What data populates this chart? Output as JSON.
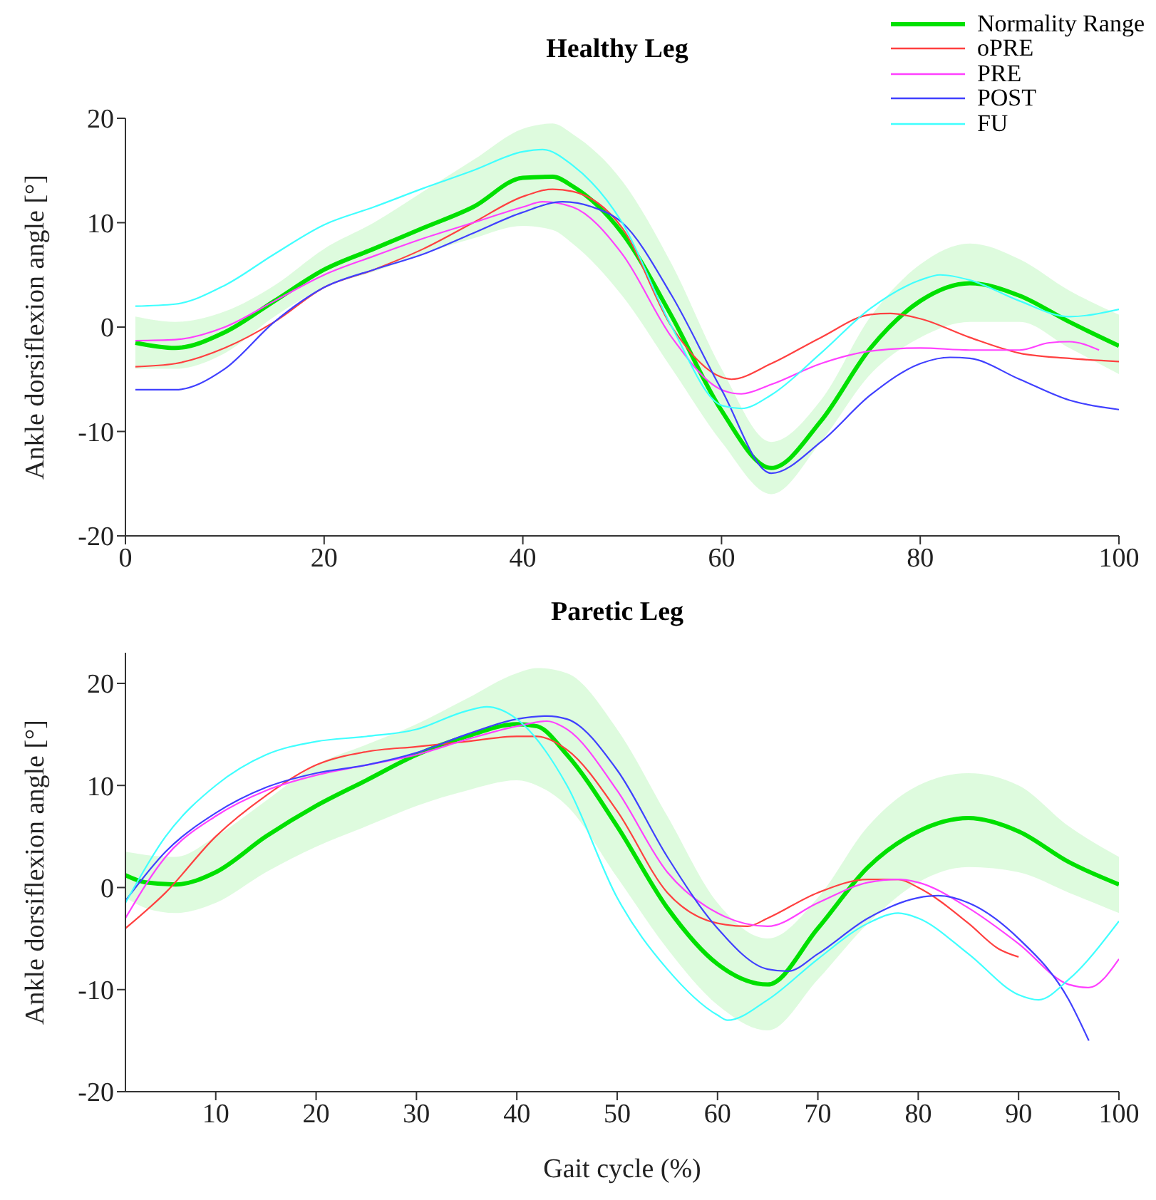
{
  "chart_data": [
    {
      "type": "line",
      "title": "Healthy Leg",
      "ylabel": "Ankle dorsiflexion angle [°]",
      "xlim": [
        0,
        100
      ],
      "xticks": [
        0,
        20,
        40,
        60,
        80,
        100
      ],
      "ylim": [
        -20,
        20
      ],
      "yticks": [
        -20,
        -10,
        0,
        10,
        20
      ],
      "legend": "top right",
      "marker": "none",
      "line_style": "solid",
      "series": [
        {
          "name": "Normality Range",
          "color": "#00e000",
          "x": [
            1,
            5,
            10,
            15,
            20,
            25,
            30,
            35,
            40,
            43,
            45,
            50,
            55,
            60,
            65,
            70,
            75,
            80,
            85,
            90,
            95,
            100
          ],
          "values": [
            -1.5,
            -2,
            -0.5,
            2.5,
            5.5,
            7.5,
            9.5,
            11.5,
            14.3,
            14.4,
            13.5,
            9,
            1,
            -8,
            -13.5,
            -9,
            -2,
            2.5,
            4.2,
            3,
            0.5,
            -1.8
          ],
          "lower": [
            -4,
            -4,
            -2.5,
            1,
            3.8,
            5.3,
            7,
            8.5,
            9.7,
            9.3,
            8,
            3,
            -4,
            -11,
            -16,
            -11,
            -4.5,
            -1,
            0.5,
            0.5,
            -2,
            -4.5
          ],
          "upper": [
            1,
            0.5,
            1.5,
            4,
            7.5,
            10,
            13,
            16,
            19,
            19.5,
            18.5,
            14,
            6,
            -4,
            -11,
            -7,
            1,
            6,
            8,
            6.5,
            3.5,
            1.2
          ]
        },
        {
          "name": "oPRE",
          "color": "#ff4040",
          "x": [
            1,
            5,
            10,
            15,
            20,
            25,
            30,
            35,
            40,
            43,
            45,
            50,
            55,
            60,
            61,
            65,
            70,
            75,
            77,
            80,
            85,
            90,
            95,
            100
          ],
          "values": [
            -3.8,
            -3.5,
            -2,
            0.5,
            3.8,
            5.5,
            7.5,
            10,
            12.5,
            13.2,
            13,
            9.5,
            0,
            -4.8,
            -5,
            -3.5,
            -1,
            1.2,
            1.3,
            0.8,
            -1,
            -2.5,
            -3,
            -3.3
          ]
        },
        {
          "name": "PRE",
          "color": "#ff40ff",
          "x": [
            1,
            5,
            10,
            15,
            20,
            25,
            30,
            35,
            40,
            42,
            45,
            50,
            55,
            60,
            62,
            65,
            70,
            75,
            80,
            85,
            90,
            93,
            95,
            98
          ],
          "values": [
            -1.3,
            -1.2,
            0,
            2.5,
            5,
            6.8,
            8.5,
            10,
            11.5,
            12,
            11.5,
            7,
            -1,
            -6,
            -6.4,
            -5.5,
            -3.5,
            -2.3,
            -2,
            -2.2,
            -2.2,
            -1.5,
            -1.4,
            -2.2
          ]
        },
        {
          "name": "POST",
          "color": "#4040ff",
          "x": [
            1,
            5,
            10,
            15,
            20,
            25,
            30,
            35,
            40,
            44,
            47,
            50,
            55,
            60,
            65,
            70,
            75,
            80,
            83,
            85,
            90,
            95,
            100
          ],
          "values": [
            -6,
            -6,
            -4,
            0.5,
            3.8,
            5.5,
            7,
            9,
            11,
            12,
            11.5,
            10,
            3,
            -6,
            -14,
            -11,
            -6.5,
            -3.5,
            -2.9,
            -3,
            -5,
            -7,
            -7.9
          ]
        },
        {
          "name": "FU",
          "color": "#40ffff",
          "x": [
            1,
            5,
            10,
            15,
            20,
            25,
            30,
            35,
            40,
            42,
            45,
            50,
            55,
            60,
            62,
            65,
            70,
            75,
            80,
            82,
            85,
            90,
            95,
            100
          ],
          "values": [
            2,
            2.2,
            4,
            7,
            9.8,
            11.5,
            13.3,
            15,
            16.8,
            17,
            15.5,
            10,
            0,
            -7.5,
            -7.8,
            -6.5,
            -2.5,
            1.8,
            4.5,
            5,
            4.5,
            2.5,
            1,
            1.7
          ]
        }
      ]
    },
    {
      "type": "line",
      "title": "Paretic Leg",
      "xlabel": "Gait cycle (%)",
      "ylabel": "Ankle dorsiflexion angle [°]",
      "xlim": [
        1,
        100
      ],
      "xticks": [
        10,
        20,
        30,
        40,
        50,
        60,
        70,
        80,
        90,
        100
      ],
      "ylim": [
        -20,
        23
      ],
      "yticks": [
        -20,
        -10,
        0,
        10,
        20
      ],
      "legend": false,
      "marker": "none",
      "line_style": "solid",
      "series": [
        {
          "color": "#00e000",
          "x": [
            1,
            3,
            6,
            10,
            15,
            20,
            25,
            30,
            35,
            40,
            42,
            45,
            50,
            55,
            60,
            65,
            70,
            75,
            80,
            85,
            90,
            95,
            100
          ],
          "values": [
            1.2,
            0.5,
            0.3,
            1.5,
            5,
            8,
            10.5,
            13,
            14.8,
            16,
            15.8,
            13,
            6,
            -2,
            -7.5,
            -9.5,
            -4,
            2,
            5.5,
            6.8,
            5.5,
            2.5,
            0.3
          ],
          "lower": [
            -1,
            -2,
            -2.5,
            -1.5,
            1.5,
            4,
            6,
            8,
            9.5,
            10.5,
            10,
            8,
            1,
            -6,
            -11.5,
            -14,
            -9,
            -3.5,
            0.5,
            2,
            1.5,
            -0.5,
            -2.5
          ],
          "upper": [
            3.5,
            3.2,
            3,
            5,
            8.5,
            12,
            14,
            16,
            18.5,
            21,
            21.5,
            21,
            15.5,
            7,
            -1.5,
            -5,
            -1,
            6,
            10,
            11.2,
            10,
            6,
            3
          ]
        },
        {
          "color": "#ff4040",
          "x": [
            1,
            5,
            10,
            15,
            20,
            25,
            30,
            35,
            40,
            42,
            45,
            50,
            55,
            60,
            63,
            65,
            70,
            75,
            78,
            80,
            85,
            88,
            90
          ],
          "values": [
            -4,
            -0.5,
            5,
            9,
            12,
            13.3,
            13.8,
            14.3,
            14.8,
            14.8,
            13.5,
            7.5,
            -0.5,
            -3.5,
            -3.8,
            -3,
            -0.5,
            0.8,
            0.8,
            0,
            -3.5,
            -6,
            -6.8
          ]
        },
        {
          "color": "#ff40ff",
          "x": [
            1,
            5,
            10,
            15,
            20,
            25,
            30,
            35,
            40,
            43,
            45,
            50,
            55,
            60,
            65,
            70,
            75,
            78,
            80,
            85,
            90,
            95,
            97,
            100
          ],
          "values": [
            -3,
            3,
            7,
            9.5,
            11,
            12,
            13,
            14.5,
            15.8,
            16.3,
            15.5,
            9.5,
            1.5,
            -2.5,
            -3.8,
            -1.5,
            0.5,
            0.8,
            0.5,
            -2,
            -5.5,
            -9.5,
            -9.8,
            -7
          ]
        },
        {
          "color": "#4040ff",
          "x": [
            1,
            5,
            10,
            15,
            20,
            25,
            30,
            35,
            40,
            43,
            45,
            50,
            55,
            60,
            65,
            67,
            70,
            75,
            80,
            82,
            85,
            90,
            95,
            97
          ],
          "values": [
            -1.3,
            3.5,
            7.3,
            9.8,
            11.2,
            12,
            13.2,
            15,
            16.5,
            16.8,
            16.5,
            11.5,
            3,
            -4,
            -8,
            -8.2,
            -6.5,
            -3,
            -1,
            -0.8,
            -1.5,
            -5,
            -11,
            -15
          ]
        },
        {
          "color": "#40ffff",
          "x": [
            1,
            5,
            10,
            15,
            20,
            25,
            30,
            35,
            37,
            40,
            45,
            50,
            55,
            60,
            61,
            65,
            70,
            75,
            78,
            80,
            85,
            90,
            92,
            95,
            100
          ],
          "values": [
            -1.5,
            5,
            10,
            13,
            14.3,
            14.8,
            15.5,
            17.3,
            17.7,
            16.5,
            10,
            -1,
            -8,
            -12.5,
            -13,
            -11,
            -7,
            -3.5,
            -2.5,
            -3,
            -6.5,
            -10.5,
            -11,
            -9,
            -3.3
          ]
        }
      ]
    }
  ]
}
